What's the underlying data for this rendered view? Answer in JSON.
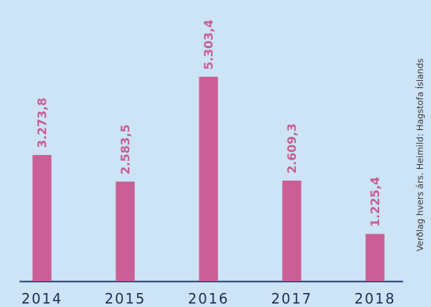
{
  "chart_data": {
    "type": "bar",
    "categories": [
      "2014",
      "2015",
      "2016",
      "2017",
      "2018"
    ],
    "values": [
      3273.8,
      2583.5,
      5303.4,
      2609.3,
      1225.4
    ],
    "value_labels": [
      "3.273,8",
      "2.583,5",
      "5.303,4",
      "2.609,3",
      "1.225,4"
    ],
    "color": "#c95f94",
    "note": "Verðlag hvers árs. Heimild: Hagstofa Íslands"
  }
}
